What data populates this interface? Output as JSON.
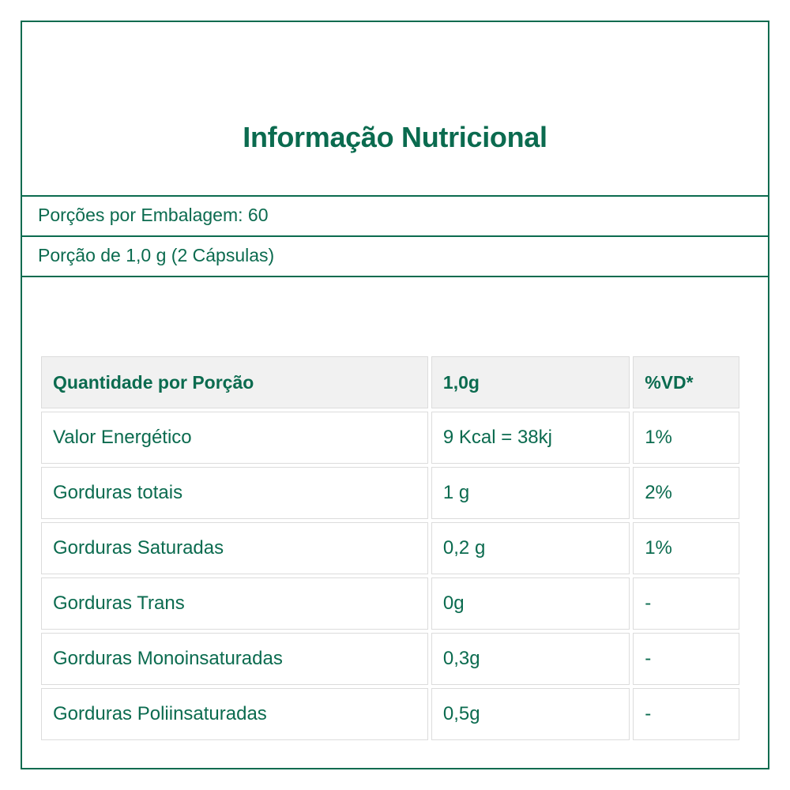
{
  "title": "Informação Nutricional",
  "servings_per_package": "Porções por Embalagem: 60",
  "serving_size": "Porção de 1,0 g (2 Cápsulas)",
  "table": {
    "header": [
      "Quantidade por Porção",
      "1,0g",
      "%VD*"
    ],
    "rows": [
      [
        "Valor Energético",
        "9 Kcal = 38kj",
        "1%"
      ],
      [
        "Gorduras totais",
        "1 g",
        "2%"
      ],
      [
        "Gorduras Saturadas",
        "0,2 g",
        "1%"
      ],
      [
        "Gorduras Trans",
        "0g",
        "-"
      ],
      [
        "Gorduras Monoinsaturadas",
        "0,3g",
        "-"
      ],
      [
        "Gorduras Poliinsaturadas",
        "0,5g",
        "-"
      ]
    ]
  },
  "colors": {
    "accent": "#0b6b4f",
    "header_bg": "#f1f1f1",
    "cell_border": "#dcdcdc"
  }
}
